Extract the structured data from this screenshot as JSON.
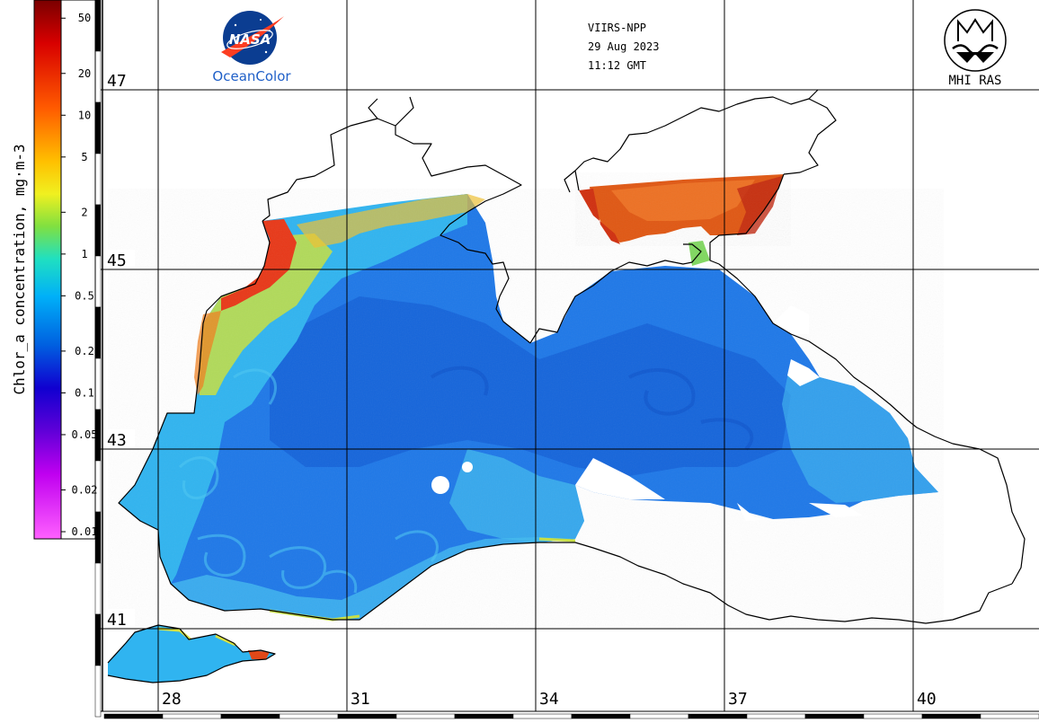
{
  "colorbar": {
    "title": "Chlor_a concentration, mg·m-3",
    "ticks": [
      "50",
      "20",
      "10",
      "5",
      "2",
      "1",
      "0.5",
      "0.2",
      "0.1",
      "0.05",
      "0.02",
      "0.01"
    ],
    "range": [
      0.01,
      60
    ],
    "scale": "log"
  },
  "header": {
    "sensor": "VIIRS-NPP",
    "date": "29 Aug 2023",
    "time": "11:12 GMT"
  },
  "logos": {
    "nasa_text": "NASA",
    "nasa_caption": "OceanColor",
    "mhi_caption": "MHI RAS"
  },
  "grid": {
    "latitudes": [
      "47",
      "45",
      "43",
      "41"
    ],
    "longitudes": [
      "28",
      "31",
      "34",
      "37",
      "40"
    ]
  },
  "colors": {
    "land": "#ffffff",
    "coast": "#000000",
    "grid": "#000000",
    "open_sea": "#1e78e8",
    "deep_core": "#1460d8",
    "shelf": "#34b4f0",
    "coastal_high": "#f05018",
    "nasa_blue": "#0b3d91",
    "nasa_red": "#fc3d21",
    "oceancolor_text": "#2060c8"
  }
}
